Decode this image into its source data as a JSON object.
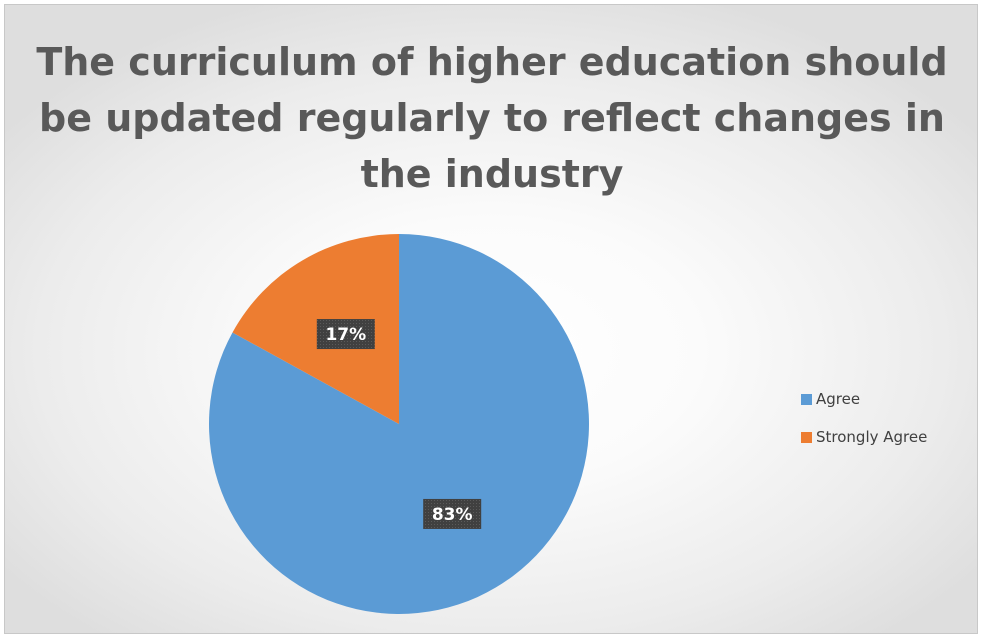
{
  "colors": {
    "agree": "#5b9bd5",
    "strongly_agree": "#ed7d31",
    "label_bg": "#404040",
    "title": "#595959"
  },
  "chart_data": {
    "type": "pie",
    "title": "The curriculum of higher education should be updated regularly to reflect changes in the industry",
    "categories": [
      "Agree",
      "Strongly Agree"
    ],
    "values": [
      83,
      17
    ],
    "data_labels": [
      "83%",
      "17%"
    ],
    "legend": {
      "position": "right",
      "entries": [
        "Agree",
        "Strongly Agree"
      ]
    }
  }
}
